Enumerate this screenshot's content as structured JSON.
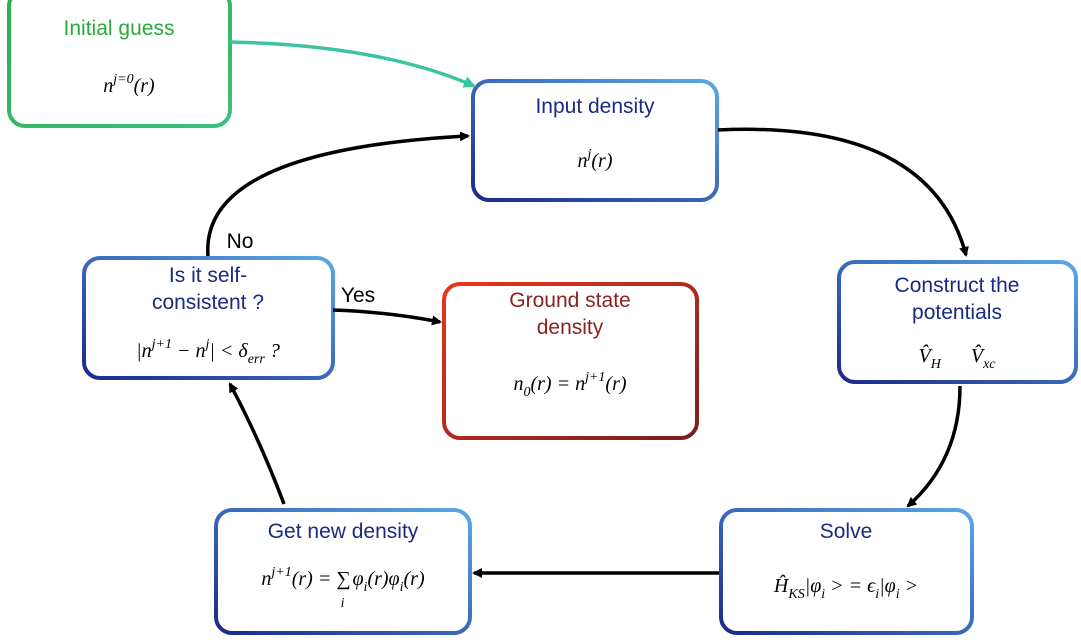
{
  "nodes": [
    {
      "title": [
        "Initial guess"
      ],
      "formula": [
        "n",
        "j=0",
        "(r)"
      ]
    },
    {
      "title": [
        "Input density"
      ],
      "formula": [
        "n",
        "j",
        "(r)"
      ]
    },
    {
      "title": [
        "Construct the",
        "potentials"
      ],
      "formula": [
        "V̂",
        "H",
        "V̂",
        "xc"
      ]
    },
    {
      "title": [
        "Solve"
      ],
      "formula": [
        "Ĥ",
        "KS",
        "|φ",
        "i",
        " > = ϵ",
        "i",
        "|φ",
        "i",
        " >"
      ]
    },
    {
      "title": [
        "Get new density"
      ],
      "formula": [
        "n",
        "j+1",
        "(r) = ∑",
        "i",
        "φ",
        "i",
        "(r)φ",
        "i",
        "(r)"
      ]
    },
    {
      "title": [
        "Is it self-",
        "consistent ?"
      ],
      "formula": [
        "|n",
        "j+1",
        " − n",
        "j",
        "| < δ",
        "err",
        "  ?"
      ]
    },
    {
      "title": [
        "Ground state",
        "density"
      ],
      "formula": [
        "n",
        "0",
        "(r) = n",
        "j+1",
        "(r)"
      ]
    }
  ],
  "edges": [
    {
      "label": "No"
    },
    {
      "label": "Yes"
    }
  ]
}
